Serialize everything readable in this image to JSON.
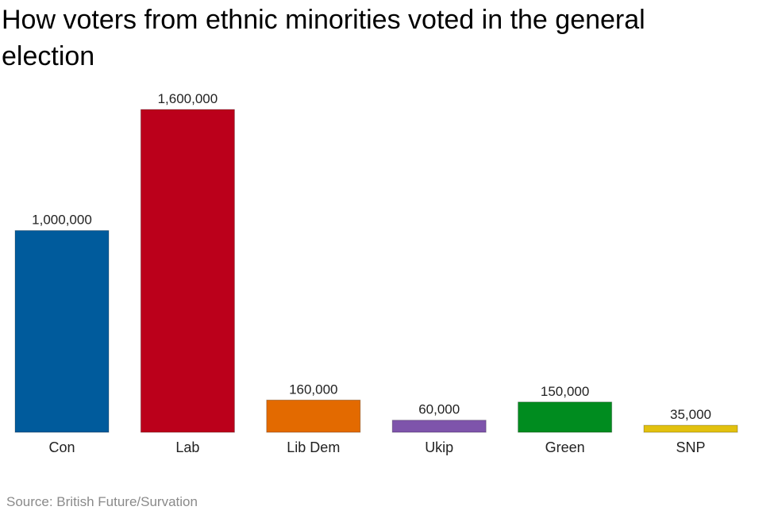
{
  "title": "How voters from ethnic minorities voted in the general election",
  "source": "Source: British Future/Survation",
  "chart_data": {
    "type": "bar",
    "title": "How voters from ethnic minorities voted in the general election",
    "categories": [
      "Con",
      "Lab",
      "Lib Dem",
      "Ukip",
      "Green",
      "SNP"
    ],
    "values": [
      1000000,
      1600000,
      160000,
      60000,
      150000,
      35000
    ],
    "value_labels": [
      "1,000,000",
      "1,600,000",
      "160,000",
      "60,000",
      "150,000",
      "35,000"
    ],
    "colors": [
      "#005b9c",
      "#bb001b",
      "#e36a00",
      "#7e54ab",
      "#008c1f",
      "#e2c10f"
    ],
    "xlabel": "",
    "ylabel": "",
    "ylim": [
      0,
      1600000
    ],
    "grid": false,
    "legend": "none"
  }
}
